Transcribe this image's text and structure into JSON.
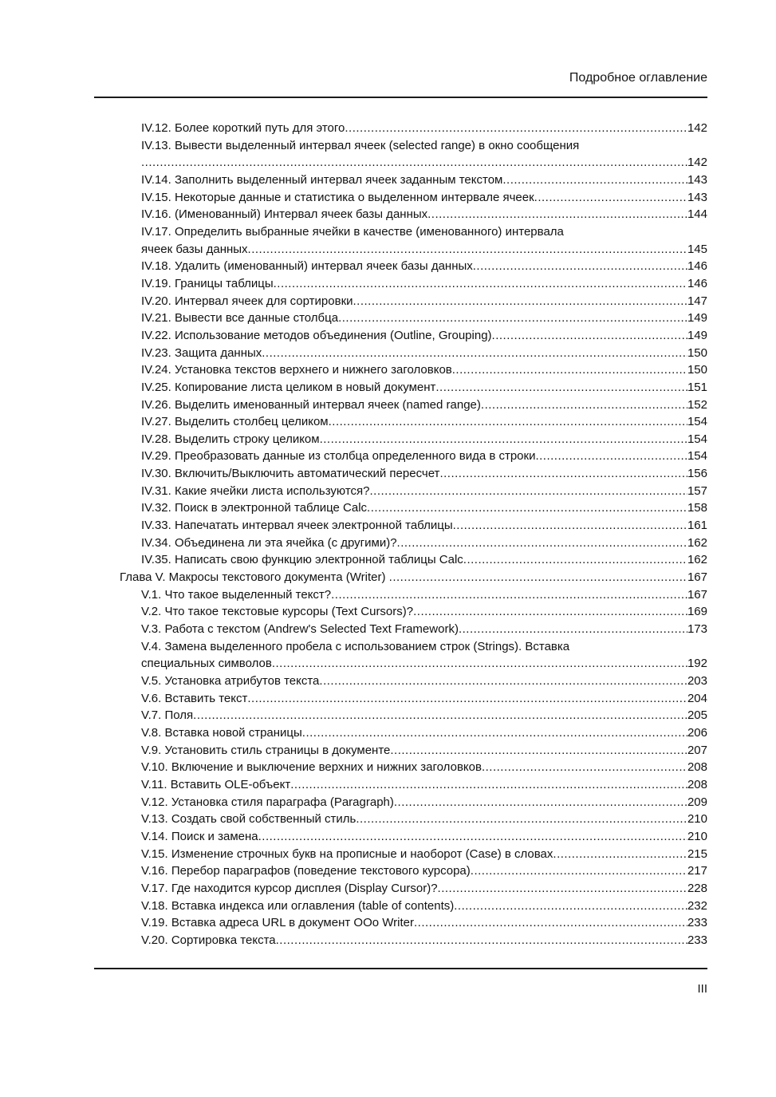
{
  "header": {
    "title": "Подробное оглавление"
  },
  "footer": {
    "page_number": "III"
  },
  "toc": {
    "entries": [
      {
        "level": 2,
        "lines": [
          "IV.12. Более короткий путь для этого"
        ],
        "page": "142"
      },
      {
        "level": 2,
        "lines": [
          "IV.13. Вывести выделенный интервал ячеек (selected range) в окно сообщения",
          ""
        ],
        "page": "142"
      },
      {
        "level": 2,
        "lines": [
          "IV.14. Заполнить выделенный интервал ячеек заданным текстом"
        ],
        "page": "143"
      },
      {
        "level": 2,
        "lines": [
          "IV.15. Некоторые данные и статистика о выделенном интервале ячеек"
        ],
        "page": "143"
      },
      {
        "level": 2,
        "lines": [
          "IV.16. (Именованный) Интервал ячеек базы данных"
        ],
        "page": "144"
      },
      {
        "level": 2,
        "lines": [
          "IV.17. Определить выбранные ячейки в качестве (именованного) интервала",
          "ячеек базы данных"
        ],
        "page": "145"
      },
      {
        "level": 2,
        "lines": [
          "IV.18. Удалить (именованный) интервал ячеек базы данных"
        ],
        "page": "146"
      },
      {
        "level": 2,
        "lines": [
          "IV.19. Границы таблицы"
        ],
        "page": "146"
      },
      {
        "level": 2,
        "lines": [
          "IV.20. Интервал ячеек для сортировки"
        ],
        "page": "147"
      },
      {
        "level": 2,
        "lines": [
          "IV.21. Вывести все данные столбца"
        ],
        "page": "149"
      },
      {
        "level": 2,
        "lines": [
          "IV.22. Использование методов объединения (Outline, Grouping)"
        ],
        "page": "149"
      },
      {
        "level": 2,
        "lines": [
          "IV.23. Защита данных"
        ],
        "page": "150"
      },
      {
        "level": 2,
        "lines": [
          "IV.24. Установка текстов верхнего и нижнего заголовков"
        ],
        "page": "150"
      },
      {
        "level": 2,
        "lines": [
          "IV.25. Копирование листа целиком в новый документ"
        ],
        "page": "151"
      },
      {
        "level": 2,
        "lines": [
          "IV.26. Выделить именованный интервал ячеек (named range)"
        ],
        "page": "152"
      },
      {
        "level": 2,
        "lines": [
          "IV.27. Выделить столбец целиком"
        ],
        "page": "154"
      },
      {
        "level": 2,
        "lines": [
          "IV.28. Выделить строку целиком"
        ],
        "page": "154"
      },
      {
        "level": 2,
        "lines": [
          "IV.29. Преобразовать данные из столбца определенного вида в строки"
        ],
        "page": "154"
      },
      {
        "level": 2,
        "lines": [
          "IV.30. Включить/Выключить автоматический пересчет"
        ],
        "page": "156"
      },
      {
        "level": 2,
        "lines": [
          "IV.31. Какие ячейки листа используются?"
        ],
        "page": "157"
      },
      {
        "level": 2,
        "lines": [
          "IV.32. Поиск в электронной таблице Calc"
        ],
        "page": "158"
      },
      {
        "level": 2,
        "lines": [
          "IV.33. Напечатать интервал ячеек электронной таблицы"
        ],
        "page": "161"
      },
      {
        "level": 2,
        "lines": [
          "IV.34. Объединена ли эта ячейка (с другими)?"
        ],
        "page": "162"
      },
      {
        "level": 2,
        "lines": [
          "IV.35. Написать свою функцию электронной таблицы Calc"
        ],
        "page": "162"
      },
      {
        "level": 1,
        "lines": [
          "Глава V. Макросы текстового документа (Writer) "
        ],
        "page": "167"
      },
      {
        "level": 2,
        "lines": [
          "V.1. Что такое выделенный текст?"
        ],
        "page": "167"
      },
      {
        "level": 2,
        "lines": [
          "V.2. Что такое текстовые курсоры (Text Cursors)?"
        ],
        "page": "169"
      },
      {
        "level": 2,
        "lines": [
          "V.3. Работа с текстом (Andrew's Selected Text Framework)"
        ],
        "page": "173"
      },
      {
        "level": 2,
        "lines": [
          "V.4. Замена выделенного пробела с использованием строк (Strings). Вставка",
          "специальных символов"
        ],
        "page": "192"
      },
      {
        "level": 2,
        "lines": [
          "V.5. Установка атрибутов текста"
        ],
        "page": "203"
      },
      {
        "level": 2,
        "lines": [
          "V.6. Вставить текст"
        ],
        "page": "204"
      },
      {
        "level": 2,
        "lines": [
          "V.7. Поля"
        ],
        "page": "205"
      },
      {
        "level": 2,
        "lines": [
          "V.8. Вставка новой страницы"
        ],
        "page": "206"
      },
      {
        "level": 2,
        "lines": [
          "V.9. Установить стиль страницы в документе"
        ],
        "page": "207"
      },
      {
        "level": 2,
        "lines": [
          "V.10. Включение и выключение верхних и нижних заголовков"
        ],
        "page": "208"
      },
      {
        "level": 2,
        "lines": [
          "V.11. Вставить OLE-объект"
        ],
        "page": "208"
      },
      {
        "level": 2,
        "lines": [
          "V.12. Установка стиля параграфа (Paragraph)"
        ],
        "page": "209"
      },
      {
        "level": 2,
        "lines": [
          "V.13. Создать свой собственный стиль"
        ],
        "page": "210"
      },
      {
        "level": 2,
        "lines": [
          "V.14. Поиск и замена"
        ],
        "page": "210"
      },
      {
        "level": 2,
        "lines": [
          "V.15. Изменение строчных букв на прописные и наоборот (Case) в словах"
        ],
        "page": "215"
      },
      {
        "level": 2,
        "lines": [
          "V.16. Перебор параграфов (поведение текстового курсора)"
        ],
        "page": "217"
      },
      {
        "level": 2,
        "lines": [
          "V.17. Где находится курсор дисплея (Display Cursor)?"
        ],
        "page": "228"
      },
      {
        "level": 2,
        "lines": [
          "V.18. Вставка индекса или оглавления (table of contents)"
        ],
        "page": "232"
      },
      {
        "level": 2,
        "lines": [
          "V.19. Вставка адреса URL в документ OOo Writer"
        ],
        "page": "233"
      },
      {
        "level": 2,
        "lines": [
          "V.20. Сортировка текста"
        ],
        "page": "233"
      }
    ]
  }
}
